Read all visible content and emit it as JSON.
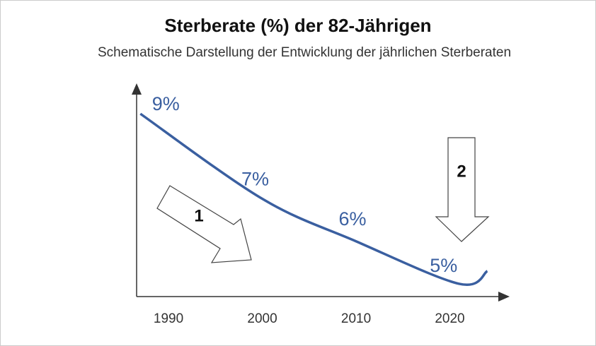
{
  "chart_data": {
    "type": "line",
    "title": "Sterberate (%) der 82-Jährigen",
    "subtitle": "Schematische Darstellung der Entwicklung der jährlichen Sterberaten",
    "x": [
      1987,
      2000,
      2010,
      2021,
      2024
    ],
    "values": [
      9,
      7,
      6,
      5,
      5.3
    ],
    "value_labels": [
      "9%",
      "7%",
      "6%",
      "5%",
      null
    ],
    "color": "#3a5fa0",
    "xlim": [
      1986.6,
      2026
    ],
    "xticks": [
      1990,
      2000,
      2010,
      2020
    ],
    "ylim": [
      4.7,
      9.6
    ],
    "annotations": [
      "1",
      "2"
    ]
  }
}
